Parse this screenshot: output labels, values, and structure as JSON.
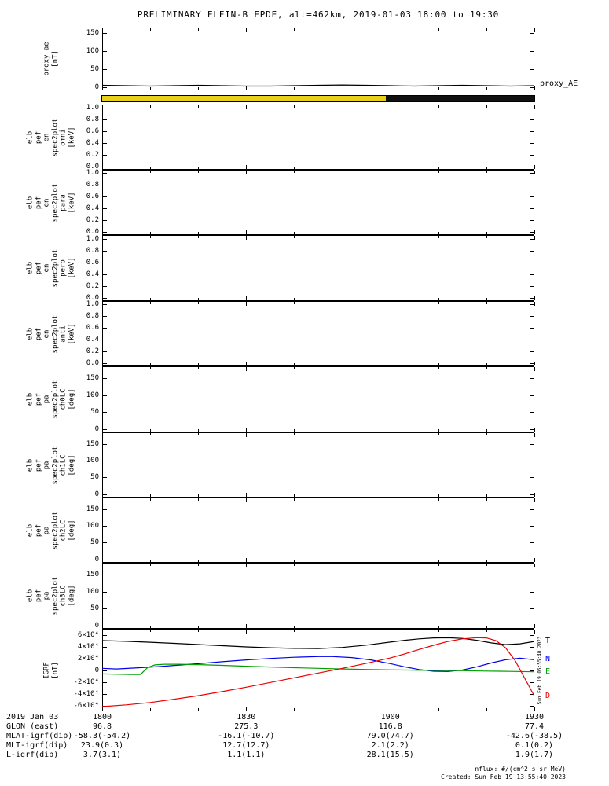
{
  "title": "PRELIMINARY ELFIN-B EPDE, alt=462km, 2019-01-03 18:00 to 19:30",
  "right_labels": {
    "proxy_ae": "proxy_AE",
    "timestamp_vertical": "Sun Feb 19 05:55:40 2023"
  },
  "footer": {
    "line1": "nflux: #/(cm^2 s sr MeV)",
    "line2": "Created: Sun Feb 19 13:55:40 2023"
  },
  "bottom_rows": [
    {
      "label": "2019 Jan 03",
      "values": [
        "1800",
        "1830",
        "1900",
        "1930"
      ]
    },
    {
      "label": "GLON (east)",
      "values": [
        "96.8",
        "275.3",
        "116.8",
        "77.4"
      ]
    },
    {
      "label": "MLAT-igrf(dip)",
      "values": [
        "-58.3(-54.2)",
        "-16.1(-10.7)",
        "79.0(74.7)",
        "-42.6(-38.5)"
      ]
    },
    {
      "label": "MLT-igrf(dip)",
      "values": [
        "23.9(0.3)",
        "12.7(12.7)",
        "2.1(2.2)",
        "0.1(0.2)"
      ]
    },
    {
      "label": "L-igrf(dip)",
      "values": [
        "3.7(3.1)",
        "1.1(1.1)",
        "28.1(15.5)",
        "1.9(1.7)"
      ]
    }
  ],
  "chart_data": [
    {
      "id": "proxy_ae",
      "type": "line",
      "ylabel_lines": [
        "proxy_ae",
        "[nT]"
      ],
      "ylim": [
        -8,
        165
      ],
      "x_range": [
        0,
        90
      ],
      "yticks": [
        150,
        100,
        50,
        0
      ],
      "ytick_labels": [
        "150",
        "100",
        "50",
        "0"
      ],
      "series": [
        {
          "name": "proxy_ae",
          "color": "#000000",
          "x": [
            0,
            5,
            10,
            15,
            20,
            25,
            30,
            35,
            40,
            45,
            50,
            55,
            60,
            65,
            70,
            75,
            80,
            85,
            90
          ],
          "y": [
            6,
            5,
            4,
            5,
            6,
            5,
            4,
            4,
            5,
            6,
            7,
            6,
            5,
            4,
            5,
            6,
            5,
            4,
            5
          ]
        }
      ]
    },
    {
      "id": "orbit_bar",
      "type": "strip",
      "segments": [
        {
          "start": 0,
          "end": 59,
          "color": "#e8cf1a"
        },
        {
          "start": 59,
          "end": 90,
          "color": "#111111"
        }
      ]
    },
    {
      "id": "en_omni",
      "type": "line",
      "ylabel_lines": [
        "elb",
        "pef",
        "en",
        "spec2plot",
        "omni",
        "[keV]"
      ],
      "ylim": [
        -0.06,
        1.06
      ],
      "x_range": [
        0,
        90
      ],
      "yticks": [
        1,
        0.8,
        0.6,
        0.4,
        0.2,
        0
      ],
      "ytick_labels": [
        "1.0",
        "0.8",
        "0.6",
        "0.4",
        "0.2",
        "0.0"
      ],
      "series": []
    },
    {
      "id": "en_para",
      "type": "line",
      "ylabel_lines": [
        "elb",
        "pef",
        "en",
        "spec2plot",
        "para",
        "[keV]"
      ],
      "ylim": [
        -0.06,
        1.06
      ],
      "x_range": [
        0,
        90
      ],
      "yticks": [
        1,
        0.8,
        0.6,
        0.4,
        0.2,
        0
      ],
      "ytick_labels": [
        "1.0",
        "0.8",
        "0.6",
        "0.4",
        "0.2",
        "0.0"
      ],
      "series": []
    },
    {
      "id": "en_perp",
      "type": "line",
      "ylabel_lines": [
        "elb",
        "pef",
        "en",
        "spec2plot",
        "perp",
        "[keV]"
      ],
      "ylim": [
        -0.06,
        1.06
      ],
      "x_range": [
        0,
        90
      ],
      "yticks": [
        1,
        0.8,
        0.6,
        0.4,
        0.2,
        0
      ],
      "ytick_labels": [
        "1.0",
        "0.8",
        "0.6",
        "0.4",
        "0.2",
        "0.0"
      ],
      "series": []
    },
    {
      "id": "en_anti",
      "type": "line",
      "ylabel_lines": [
        "elb",
        "pef",
        "en",
        "spec2plot",
        "anti",
        "[keV]"
      ],
      "ylim": [
        -0.06,
        1.06
      ],
      "x_range": [
        0,
        90
      ],
      "yticks": [
        1,
        0.8,
        0.6,
        0.4,
        0.2,
        0
      ],
      "ytick_labels": [
        "1.0",
        "0.8",
        "0.6",
        "0.4",
        "0.2",
        "0.0"
      ],
      "series": []
    },
    {
      "id": "pa_ch0lc",
      "type": "line",
      "ylabel_lines": [
        "elb",
        "pef",
        "pa",
        "spec2plot",
        "ch0LC",
        "[deg]"
      ],
      "ylim": [
        -10,
        185
      ],
      "x_range": [
        0,
        90
      ],
      "yticks": [
        150,
        100,
        50,
        0
      ],
      "ytick_labels": [
        "150",
        "100",
        "50",
        "0"
      ],
      "series": []
    },
    {
      "id": "pa_ch1lc",
      "type": "line",
      "ylabel_lines": [
        "elb",
        "pef",
        "pa",
        "spec2plot",
        "ch1LC",
        "[deg]"
      ],
      "ylim": [
        -10,
        185
      ],
      "x_range": [
        0,
        90
      ],
      "yticks": [
        150,
        100,
        50,
        0
      ],
      "ytick_labels": [
        "150",
        "100",
        "50",
        "0"
      ],
      "series": []
    },
    {
      "id": "pa_ch2lc",
      "type": "line",
      "ylabel_lines": [
        "elb",
        "pef",
        "pa",
        "spec2plot",
        "ch2LC",
        "[deg]"
      ],
      "ylim": [
        -10,
        185
      ],
      "x_range": [
        0,
        90
      ],
      "yticks": [
        150,
        100,
        50,
        0
      ],
      "ytick_labels": [
        "150",
        "100",
        "50",
        "0"
      ],
      "series": []
    },
    {
      "id": "pa_ch3lc",
      "type": "line",
      "ylabel_lines": [
        "elb",
        "pef",
        "pa",
        "spec2plot",
        "ch3LC",
        "[deg]"
      ],
      "ylim": [
        -10,
        185
      ],
      "x_range": [
        0,
        90
      ],
      "yticks": [
        150,
        100,
        50,
        0
      ],
      "ytick_labels": [
        "150",
        "100",
        "50",
        "0"
      ],
      "series": []
    },
    {
      "id": "igrf",
      "type": "line",
      "legend": true,
      "ylabel_lines": [
        "IGRF",
        "[nT]"
      ],
      "ylim": [
        -70000,
        70000
      ],
      "x_range": [
        0,
        90
      ],
      "yticks": [
        60000,
        40000,
        20000,
        0,
        -20000,
        -40000,
        -60000
      ],
      "ytick_labels": [
        "6×10⁴",
        "4×10⁴",
        "2×10⁴",
        "0",
        "-2×10⁴",
        "-4×10⁴",
        "-6×10⁴"
      ],
      "series": [
        {
          "name": "T",
          "color": "#000000",
          "x": [
            0,
            5,
            10,
            15,
            20,
            25,
            30,
            35,
            40,
            45,
            50,
            55,
            60,
            63,
            66,
            69,
            72,
            75,
            78,
            81,
            84,
            87,
            90
          ],
          "y": [
            50000,
            48800,
            47200,
            45300,
            43300,
            41300,
            39400,
            37900,
            36800,
            36600,
            38400,
            42200,
            47500,
            50500,
            53000,
            54500,
            54800,
            53800,
            50500,
            46200,
            43200,
            44500,
            48500
          ]
        },
        {
          "name": "N",
          "color": "#0000ee",
          "x": [
            0,
            3,
            6,
            9,
            12,
            15,
            20,
            25,
            30,
            35,
            40,
            45,
            48,
            52,
            56,
            60,
            63,
            66,
            69,
            72,
            75,
            78,
            81,
            84,
            87,
            90
          ],
          "y": [
            3000,
            1800,
            3200,
            4500,
            6000,
            7800,
            10800,
            14200,
            17200,
            19800,
            21800,
            23000,
            23000,
            21200,
            17200,
            11000,
            5500,
            1000,
            -2000,
            -2400,
            0,
            5500,
            12000,
            17500,
            20300,
            17500
          ]
        },
        {
          "name": "E",
          "color": "#00a000",
          "x": [
            0,
            2,
            4,
            6,
            8,
            8.5,
            9.5,
            11,
            13,
            16,
            20,
            25,
            30,
            35,
            40,
            45,
            50,
            55,
            60,
            65,
            70,
            75,
            80,
            85,
            90
          ],
          "y": [
            -6500,
            -6800,
            -7200,
            -7500,
            -7600,
            -3500,
            4500,
            8800,
            9800,
            9900,
            9200,
            8000,
            6500,
            5200,
            4000,
            2900,
            1900,
            1100,
            400,
            -100,
            -600,
            -1100,
            -1700,
            -2300,
            -2900
          ]
        },
        {
          "name": "D",
          "color": "#ee0000",
          "x": [
            0,
            5,
            10,
            15,
            20,
            25,
            30,
            35,
            40,
            45,
            50,
            55,
            60,
            63,
            66,
            69,
            72,
            75,
            78,
            80,
            82,
            84,
            86,
            88,
            90
          ],
          "y": [
            -62000,
            -59000,
            -55000,
            -49500,
            -43500,
            -36500,
            -29000,
            -21000,
            -13000,
            -5000,
            3000,
            11500,
            20500,
            27500,
            35000,
            42000,
            48500,
            53000,
            55000,
            54500,
            50000,
            38000,
            16000,
            -14000,
            -44000
          ]
        }
      ]
    }
  ]
}
